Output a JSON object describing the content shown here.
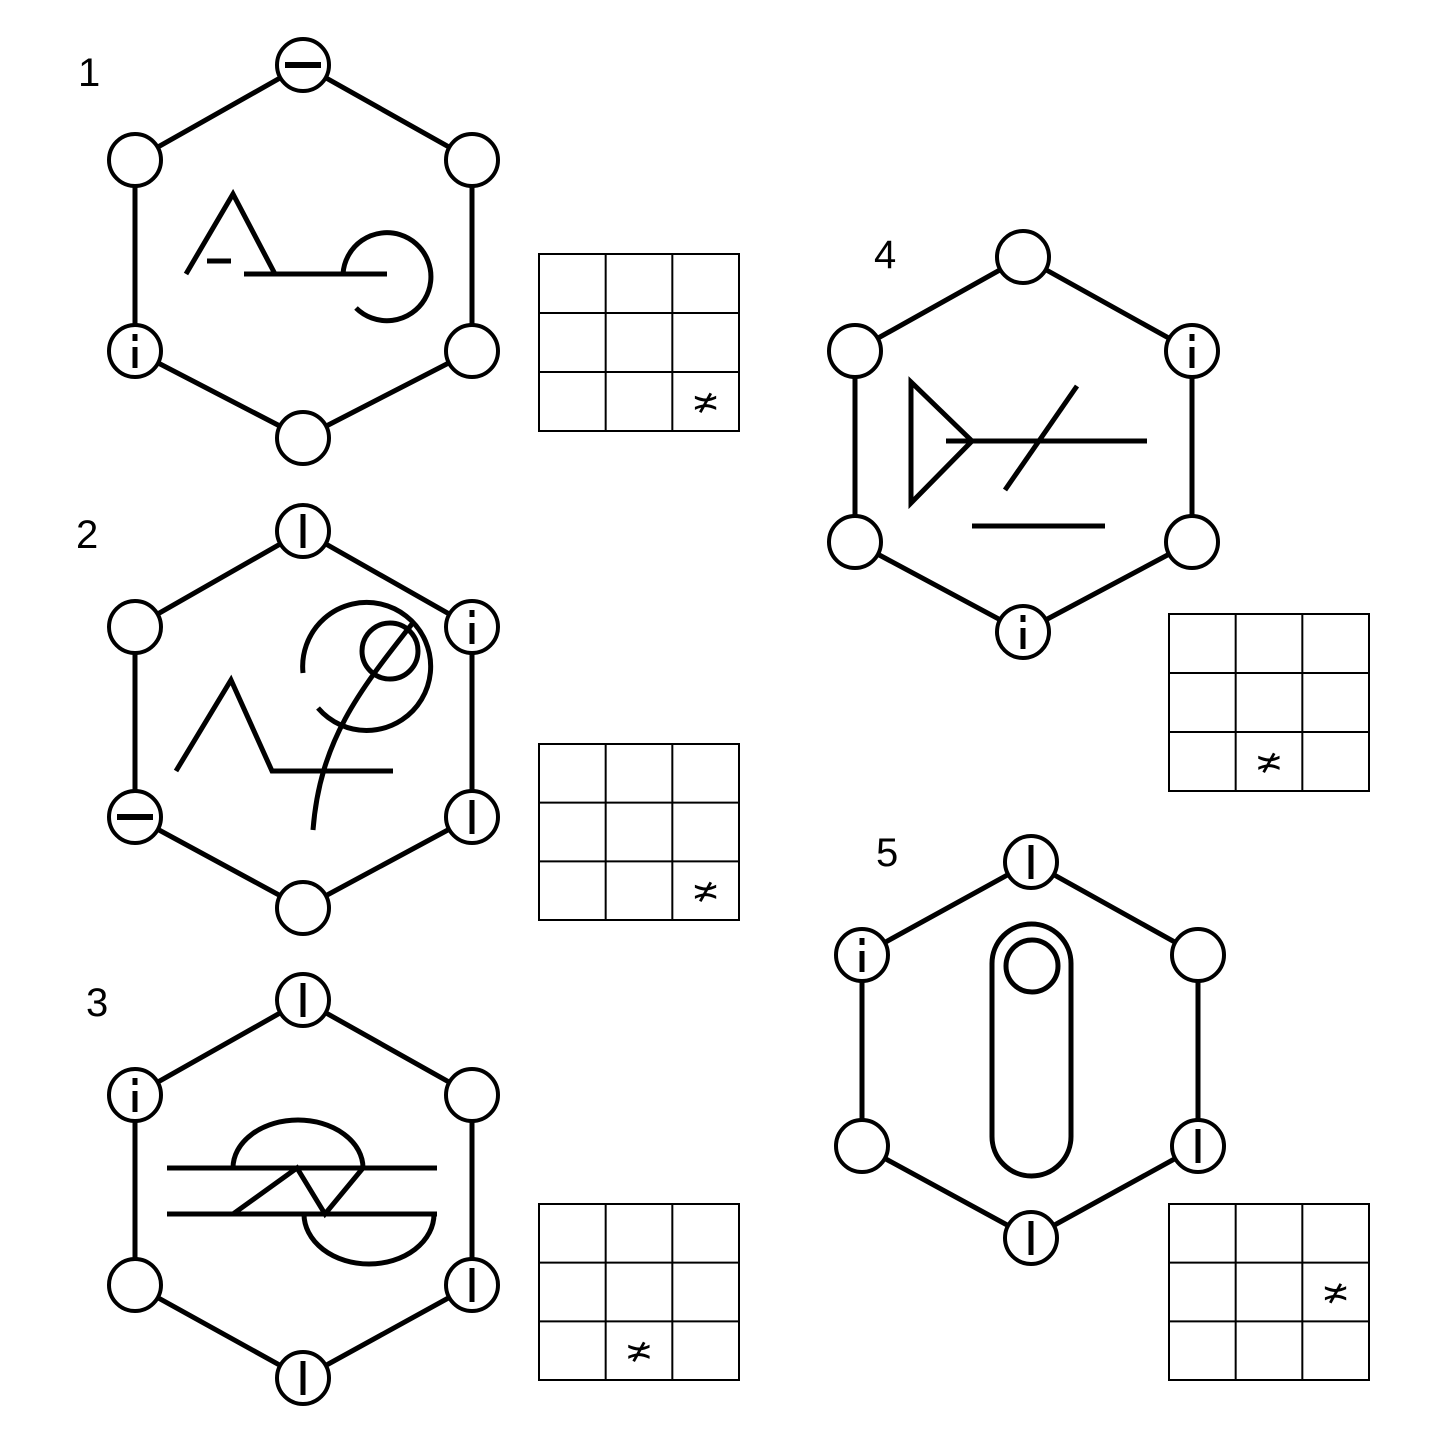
{
  "puzzles": [
    {
      "label": "1",
      "nodes": [
        "minus",
        "empty",
        "empty",
        "empty",
        "dashed",
        "empty"
      ],
      "grid_mark": {
        "row": 2,
        "col": 2,
        "symbol": "≭"
      }
    },
    {
      "label": "2",
      "nodes": [
        "bar",
        "dashed",
        "bar",
        "empty",
        "minus",
        "empty"
      ],
      "grid_mark": {
        "row": 2,
        "col": 2,
        "symbol": "≭"
      }
    },
    {
      "label": "3",
      "nodes": [
        "bar",
        "empty",
        "bar",
        "bar",
        "empty",
        "dashed"
      ],
      "grid_mark": {
        "row": 2,
        "col": 1,
        "symbol": "≭"
      }
    },
    {
      "label": "4",
      "nodes": [
        "empty",
        "dashed",
        "empty",
        "dashed",
        "empty",
        "empty"
      ],
      "grid_mark": {
        "row": 2,
        "col": 1,
        "symbol": "≭"
      }
    },
    {
      "label": "5",
      "nodes": [
        "bar",
        "empty",
        "bar",
        "bar",
        "empty",
        "dashed"
      ],
      "grid_mark": {
        "row": 1,
        "col": 2,
        "symbol": "≭"
      }
    }
  ]
}
